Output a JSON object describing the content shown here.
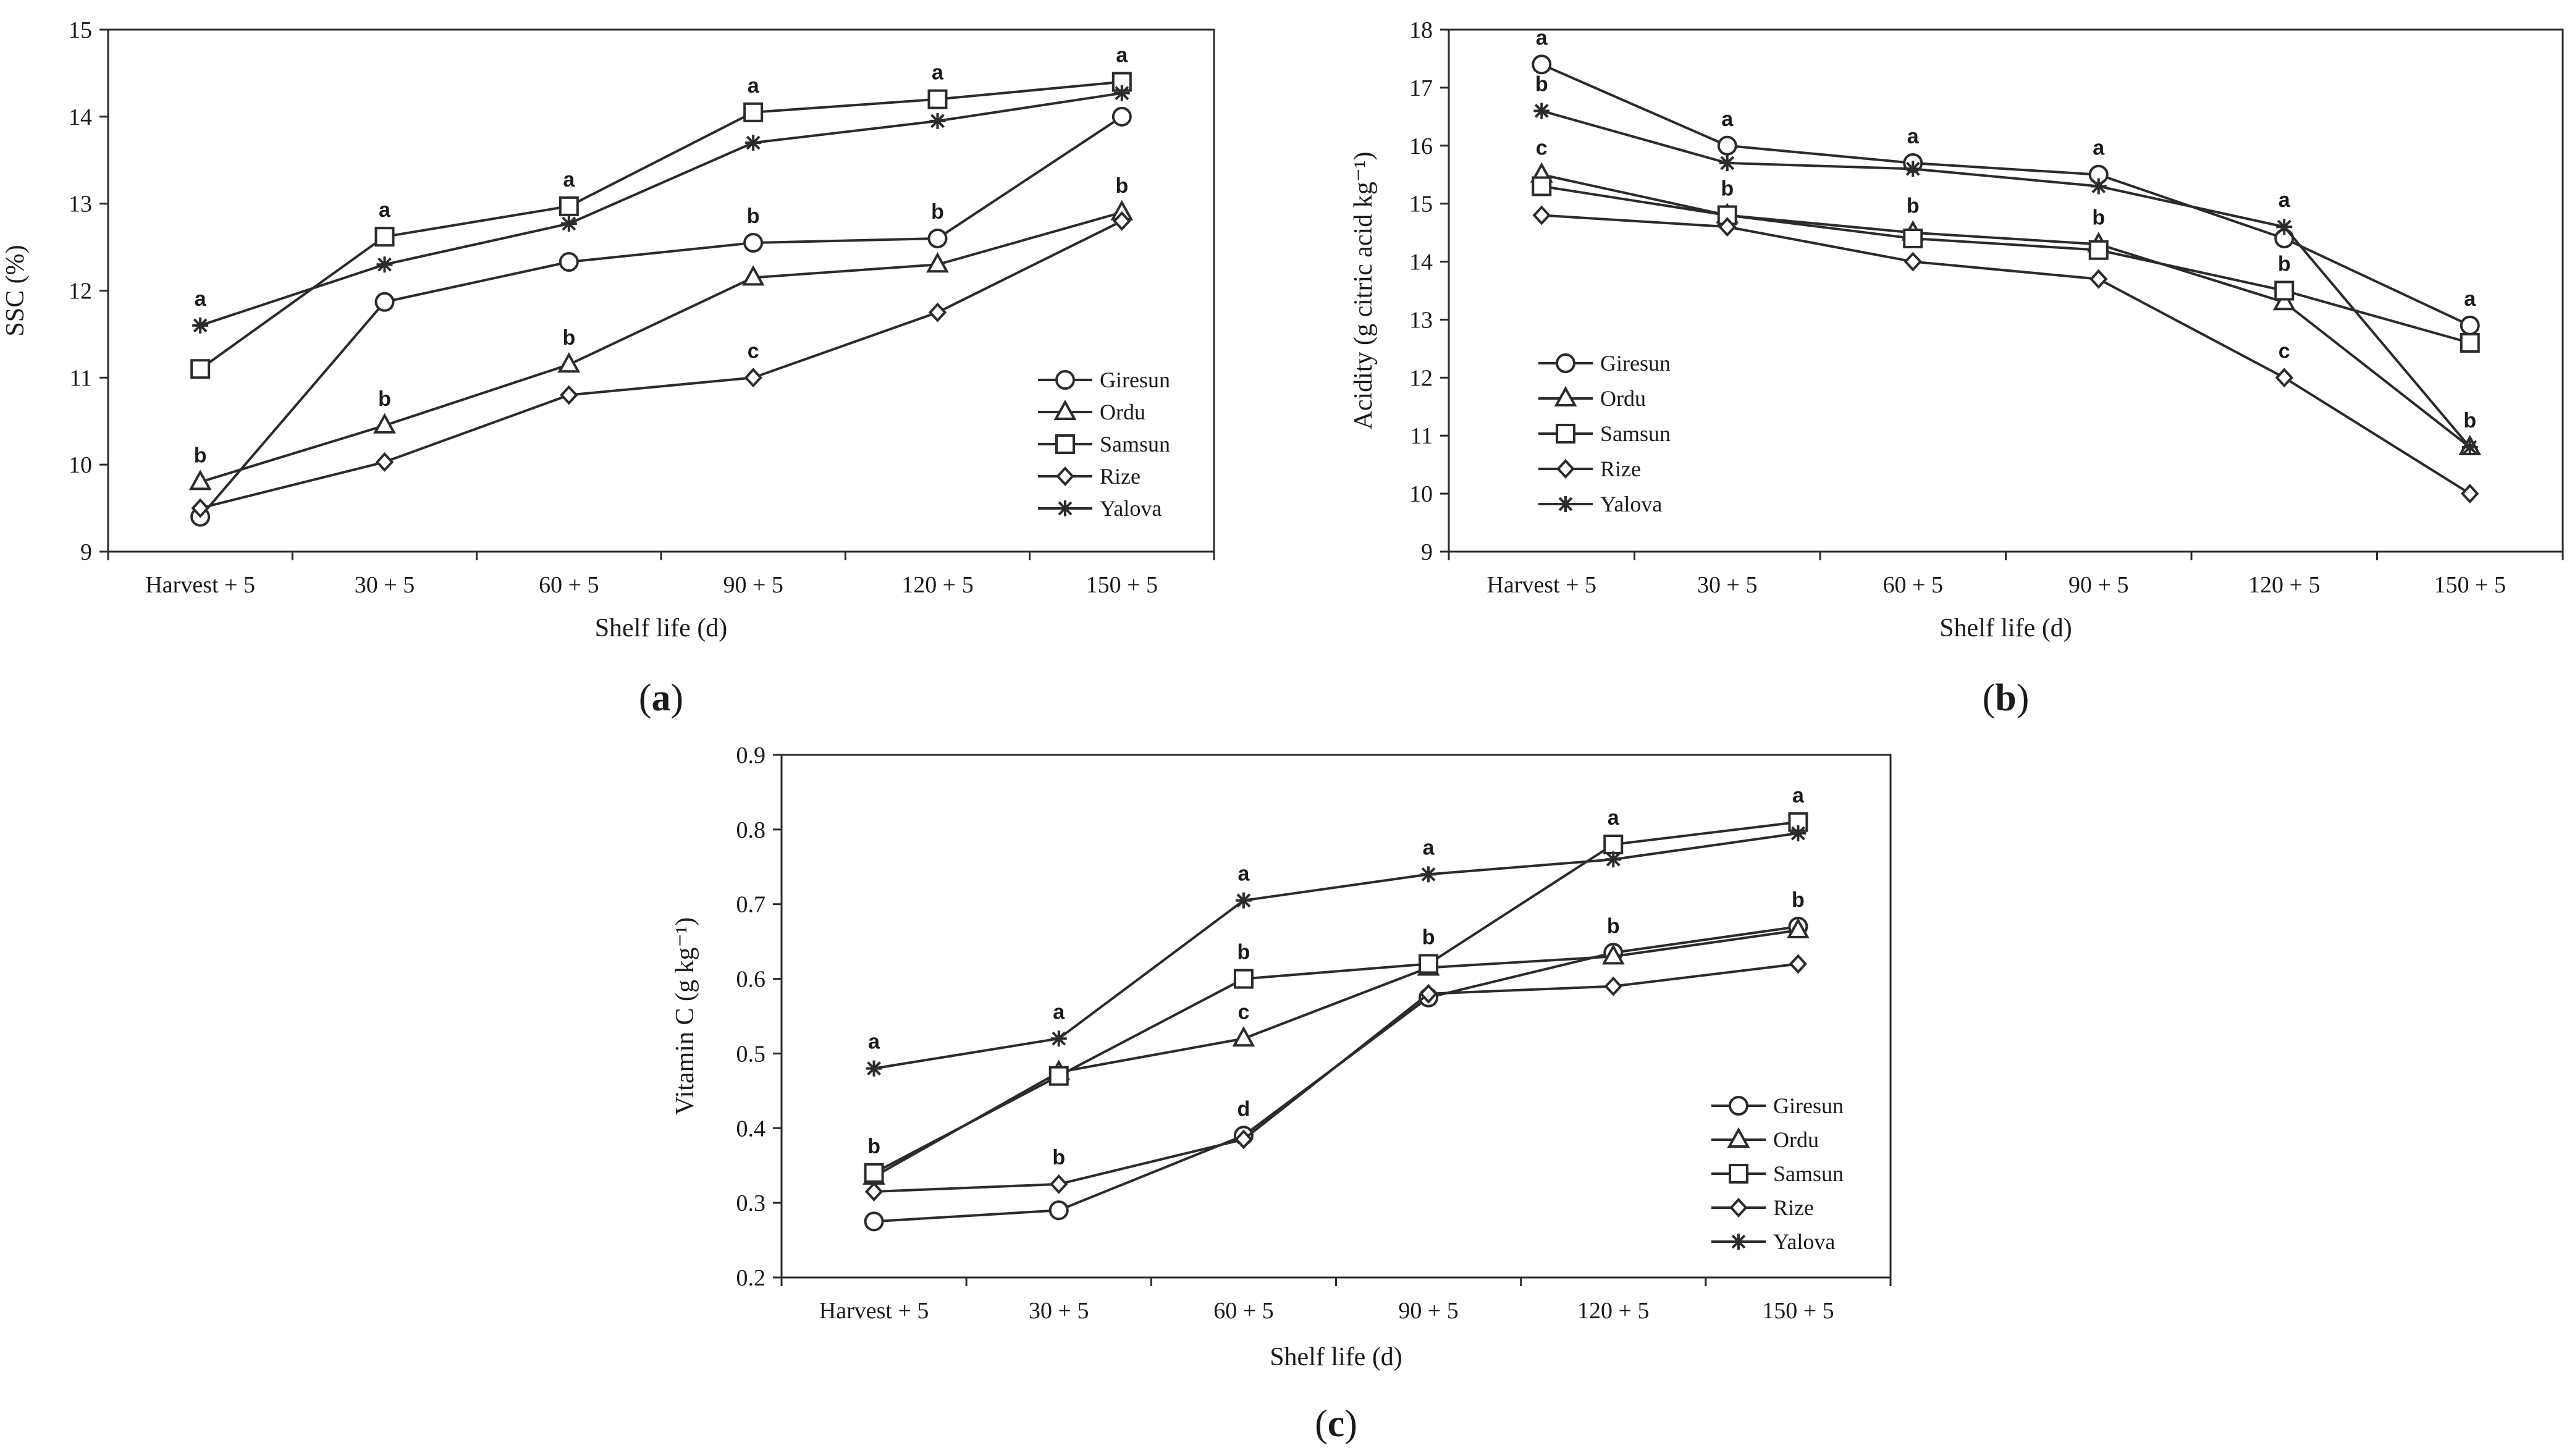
{
  "colors": {
    "line": "#2b2b2b",
    "background": "#ffffff"
  },
  "legend_entries": [
    {
      "name": "Giresun",
      "marker": "circle"
    },
    {
      "name": "Ordu",
      "marker": "triangle"
    },
    {
      "name": "Samsun",
      "marker": "square"
    },
    {
      "name": "Rize",
      "marker": "diamond"
    },
    {
      "name": "Yalova",
      "marker": "asterisk"
    }
  ],
  "chart_data": [
    {
      "id": "a",
      "type": "line",
      "panel_label": "a",
      "xlabel": "Shelf life (d)",
      "ylabel": "SSC (%)",
      "categories": [
        "Harvest + 5",
        "30 + 5",
        "60 + 5",
        "90 + 5",
        "120 + 5",
        "150 + 5"
      ],
      "ylim": [
        9,
        15
      ],
      "yticks": [
        9,
        10,
        11,
        12,
        13,
        14,
        15
      ],
      "legend_position": "lower-right",
      "series": [
        {
          "name": "Giresun",
          "values": [
            9.4,
            11.87,
            12.33,
            12.55,
            12.6,
            14.0
          ]
        },
        {
          "name": "Ordu",
          "values": [
            9.8,
            10.45,
            11.15,
            12.15,
            12.3,
            12.9
          ]
        },
        {
          "name": "Samsun",
          "values": [
            11.1,
            12.62,
            12.97,
            14.05,
            14.2,
            14.4
          ]
        },
        {
          "name": "Rize",
          "values": [
            9.5,
            10.03,
            10.8,
            11.0,
            11.75,
            12.8
          ]
        },
        {
          "name": "Yalova",
          "values": [
            11.6,
            12.3,
            12.77,
            13.7,
            13.95,
            14.27
          ]
        }
      ],
      "annotations": [
        {
          "category": 0,
          "y": 11.6,
          "text": "a"
        },
        {
          "category": 0,
          "y": 9.8,
          "text": "b"
        },
        {
          "category": 1,
          "y": 12.62,
          "text": "a"
        },
        {
          "category": 1,
          "y": 10.45,
          "text": "b"
        },
        {
          "category": 2,
          "y": 12.97,
          "text": "a"
        },
        {
          "category": 2,
          "y": 11.15,
          "text": "b"
        },
        {
          "category": 3,
          "y": 14.05,
          "text": "a"
        },
        {
          "category": 3,
          "y": 12.55,
          "text": "b"
        },
        {
          "category": 3,
          "y": 11.0,
          "text": "c"
        },
        {
          "category": 4,
          "y": 14.2,
          "text": "a"
        },
        {
          "category": 4,
          "y": 12.6,
          "text": "b"
        },
        {
          "category": 5,
          "y": 14.4,
          "text": "a"
        },
        {
          "category": 5,
          "y": 12.9,
          "text": "b"
        }
      ]
    },
    {
      "id": "b",
      "type": "line",
      "panel_label": "b",
      "xlabel": "Shelf life (d)",
      "ylabel": "Acidity (g citric acid kg⁻¹)",
      "categories": [
        "Harvest + 5",
        "30 + 5",
        "60 + 5",
        "90 + 5",
        "120 + 5",
        "150 + 5"
      ],
      "ylim": [
        9,
        18
      ],
      "yticks": [
        9,
        10,
        11,
        12,
        13,
        14,
        15,
        16,
        17,
        18
      ],
      "legend_position": "lower-left",
      "series": [
        {
          "name": "Giresun",
          "values": [
            17.4,
            16.0,
            15.7,
            15.5,
            14.4,
            12.9
          ]
        },
        {
          "name": "Ordu",
          "values": [
            15.5,
            14.8,
            14.5,
            14.3,
            13.3,
            10.8
          ]
        },
        {
          "name": "Samsun",
          "values": [
            15.3,
            14.8,
            14.4,
            14.2,
            13.5,
            12.6
          ]
        },
        {
          "name": "Rize",
          "values": [
            14.8,
            14.6,
            14.0,
            13.7,
            12.0,
            10.0
          ]
        },
        {
          "name": "Yalova",
          "values": [
            16.6,
            15.7,
            15.6,
            15.3,
            14.6,
            10.8
          ]
        }
      ],
      "annotations": [
        {
          "category": 0,
          "y": 17.4,
          "text": "a"
        },
        {
          "category": 0,
          "y": 16.6,
          "text": "b"
        },
        {
          "category": 0,
          "y": 15.5,
          "text": "c"
        },
        {
          "category": 1,
          "y": 16.0,
          "text": "a"
        },
        {
          "category": 1,
          "y": 14.8,
          "text": "b"
        },
        {
          "category": 2,
          "y": 15.7,
          "text": "a"
        },
        {
          "category": 2,
          "y": 14.5,
          "text": "b"
        },
        {
          "category": 3,
          "y": 15.5,
          "text": "a"
        },
        {
          "category": 3,
          "y": 14.3,
          "text": "b"
        },
        {
          "category": 4,
          "y": 14.6,
          "text": "a"
        },
        {
          "category": 4,
          "y": 13.5,
          "text": "b"
        },
        {
          "category": 4,
          "y": 12.0,
          "text": "c"
        },
        {
          "category": 5,
          "y": 12.9,
          "text": "a"
        },
        {
          "category": 5,
          "y": 10.8,
          "text": "b"
        }
      ]
    },
    {
      "id": "c",
      "type": "line",
      "panel_label": "c",
      "xlabel": "Shelf life (d)",
      "ylabel": "Vitamin C (g kg⁻¹)",
      "categories": [
        "Harvest + 5",
        "30 + 5",
        "60 + 5",
        "90 + 5",
        "120 + 5",
        "150 + 5"
      ],
      "ylim": [
        0.2,
        0.9
      ],
      "yticks": [
        0.2,
        0.3,
        0.4,
        0.5,
        0.6,
        0.7,
        0.8,
        0.9
      ],
      "legend_position": "lower-right",
      "series": [
        {
          "name": "Giresun",
          "values": [
            0.275,
            0.29,
            0.39,
            0.575,
            0.635,
            0.67
          ]
        },
        {
          "name": "Ordu",
          "values": [
            0.335,
            0.475,
            0.52,
            0.615,
            0.63,
            0.665
          ]
        },
        {
          "name": "Samsun",
          "values": [
            0.34,
            0.47,
            0.6,
            0.62,
            0.78,
            0.81
          ]
        },
        {
          "name": "Rize",
          "values": [
            0.315,
            0.325,
            0.385,
            0.58,
            0.59,
            0.62
          ]
        },
        {
          "name": "Yalova",
          "values": [
            0.48,
            0.52,
            0.705,
            0.74,
            0.76,
            0.795
          ]
        }
      ],
      "annotations": [
        {
          "category": 0,
          "y": 0.48,
          "text": "a"
        },
        {
          "category": 0,
          "y": 0.34,
          "text": "b"
        },
        {
          "category": 1,
          "y": 0.52,
          "text": "a"
        },
        {
          "category": 1,
          "y": 0.325,
          "text": "b"
        },
        {
          "category": 2,
          "y": 0.705,
          "text": "a"
        },
        {
          "category": 2,
          "y": 0.6,
          "text": "b"
        },
        {
          "category": 2,
          "y": 0.52,
          "text": "c"
        },
        {
          "category": 2,
          "y": 0.39,
          "text": "d"
        },
        {
          "category": 3,
          "y": 0.74,
          "text": "a"
        },
        {
          "category": 3,
          "y": 0.62,
          "text": "b"
        },
        {
          "category": 4,
          "y": 0.78,
          "text": "a"
        },
        {
          "category": 4,
          "y": 0.635,
          "text": "b"
        },
        {
          "category": 5,
          "y": 0.81,
          "text": "a"
        },
        {
          "category": 5,
          "y": 0.67,
          "text": "b"
        }
      ]
    }
  ]
}
